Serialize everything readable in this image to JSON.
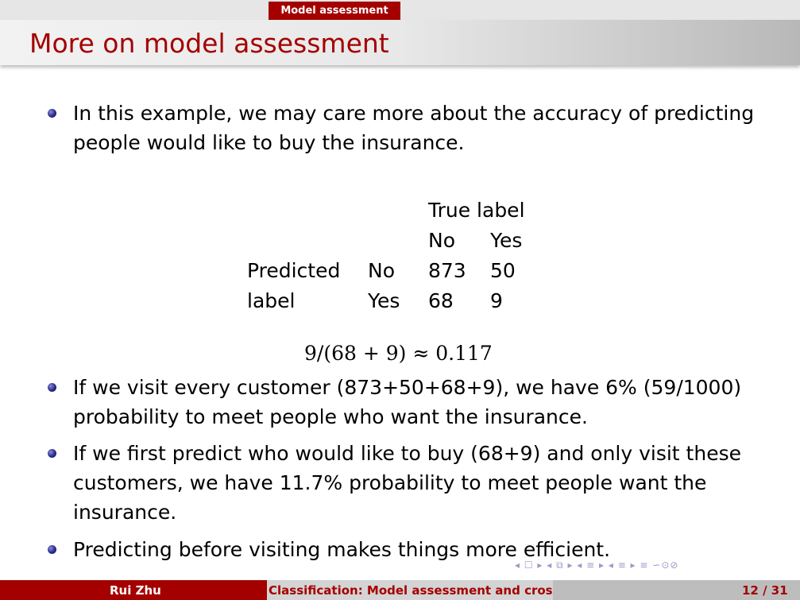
{
  "header": {
    "section": "Model assessment"
  },
  "title": "More on model assessment",
  "bullets": {
    "b1": [
      "In this example, we may care more about the accuracy of predicting",
      "people would like to buy the insurance."
    ],
    "b2": [
      "If we visit every customer (873+50+68+9), we have 6% (59/1000)",
      "probability to meet people who want the insurance."
    ],
    "b3": [
      "If we first predict who would like to buy (68+9) and only visit these",
      "customers, we have 11.7% probability to meet people want the",
      "insurance."
    ],
    "b4": [
      "Predicting before visiting makes things more efficient."
    ]
  },
  "confusion_table": {
    "col_header": "True label",
    "col_labels": [
      "No",
      "Yes"
    ],
    "row_header": [
      "Predicted",
      "label"
    ],
    "row_labels": [
      "No",
      "Yes"
    ],
    "cells": [
      [
        "873",
        "50"
      ],
      [
        "68",
        "9"
      ]
    ]
  },
  "formula": "9/(68 + 9) ≈ 0.117",
  "nav_symbols": "◂ ☐ ▸ ◂ ⧉ ▸ ◂ ≡ ▸ ◂ ≡ ▸   ≡   ∽⊙⊘",
  "footer": {
    "author": "Rui Zhu",
    "talk_title": "Classification: Model assessment and cross-validation",
    "page": "12 / 31"
  }
}
